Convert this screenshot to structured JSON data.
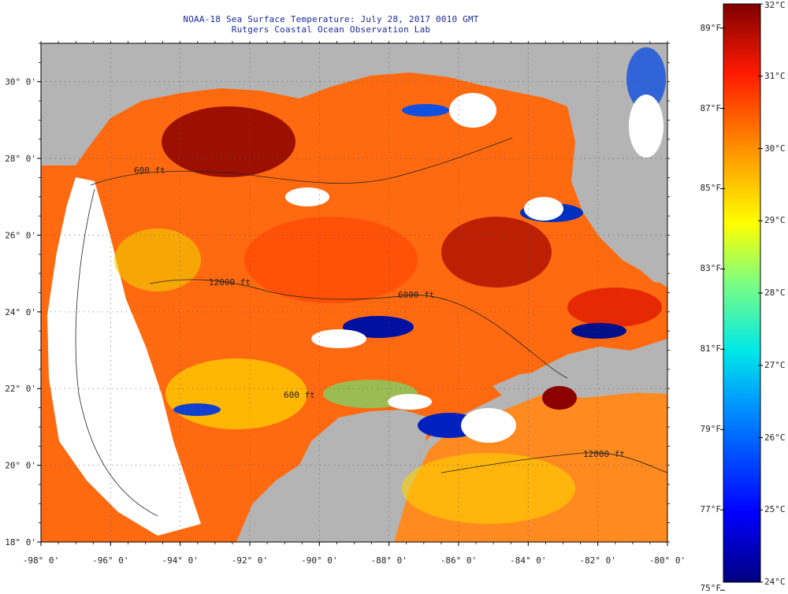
{
  "title": {
    "line1": "NOAA-18 Sea Surface Temperature:  July 28, 2017 0010 GMT",
    "line2": "Rutgers Coastal Ocean Observation Lab"
  },
  "map": {
    "lon_range": [
      -98,
      -80
    ],
    "lat_range": [
      18,
      31
    ],
    "lon_ticks": [
      {
        "value": -98,
        "label": "-98° 0'"
      },
      {
        "value": -96,
        "label": "-96° 0'"
      },
      {
        "value": -94,
        "label": "-94° 0'"
      },
      {
        "value": -92,
        "label": "-92° 0'"
      },
      {
        "value": -90,
        "label": "-90° 0'"
      },
      {
        "value": -88,
        "label": "-88° 0'"
      },
      {
        "value": -86,
        "label": "-86° 0'"
      },
      {
        "value": -84,
        "label": "-84° 0'"
      },
      {
        "value": -82,
        "label": "-82° 0'"
      },
      {
        "value": -80,
        "label": "-80° 0'"
      }
    ],
    "lat_ticks": [
      {
        "value": 18,
        "label": "18° 0'"
      },
      {
        "value": 20,
        "label": "20° 0'"
      },
      {
        "value": 22,
        "label": "22° 0'"
      },
      {
        "value": 24,
        "label": "24° 0'"
      },
      {
        "value": 26,
        "label": "26° 0'"
      },
      {
        "value": 28,
        "label": "28° 0'"
      },
      {
        "value": 30,
        "label": "30° 0'"
      }
    ],
    "contour_labels": [
      "600 ft",
      "12000 ft",
      "6000 ft",
      "600 ft",
      "12000 ft"
    ],
    "colors": {
      "land": "#b4b4b4",
      "no_data": "#ffffff",
      "hot": "#8b0000",
      "warm": "#ff4500",
      "mid": "#ffd700",
      "cool": "#00bfff",
      "cold": "#00008b"
    }
  },
  "colorbar": {
    "fahrenheit": [
      {
        "value": 89,
        "label": "89°F"
      },
      {
        "value": 87,
        "label": "87°F"
      },
      {
        "value": 85,
        "label": "85°F"
      },
      {
        "value": 83,
        "label": "83°F"
      },
      {
        "value": 81,
        "label": "81°F"
      },
      {
        "value": 79,
        "label": "79°F"
      },
      {
        "value": 77,
        "label": "77°F"
      },
      {
        "value": 75,
        "label": "75°F"
      }
    ],
    "celsius": [
      {
        "value": 32,
        "label": "32°C"
      },
      {
        "value": 31,
        "label": "31°C"
      },
      {
        "value": 30,
        "label": "30°C"
      },
      {
        "value": 29,
        "label": "29°C"
      },
      {
        "value": 28,
        "label": "28°C"
      },
      {
        "value": 27,
        "label": "27°C"
      },
      {
        "value": 26,
        "label": "26°C"
      },
      {
        "value": 25,
        "label": "25°C"
      },
      {
        "value": 24,
        "label": "24°C"
      }
    ],
    "range_c": [
      24,
      32
    ]
  }
}
